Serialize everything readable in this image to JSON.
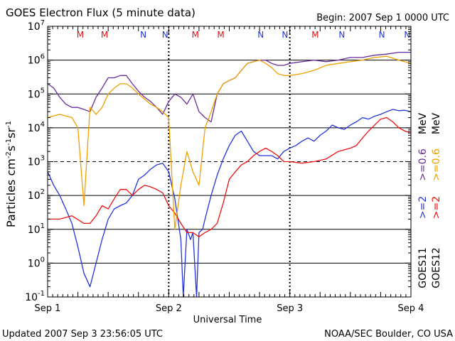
{
  "header": {
    "title": "GOES Electron Flux (5 minute data)",
    "begin": "Begin: 2007 Sep 1 0000 UTC"
  },
  "footer": {
    "updated": "Updated 2007 Sep  3 23:56:05 UTC",
    "credit": "NOAA/SEC Boulder, CO USA"
  },
  "colors": {
    "goes11_2mev": "#2233dd",
    "goes11_06mev": "#6a2c9a",
    "goes12_2mev": "#ee1111",
    "goes12_06mev": "#f0a000",
    "marker_m": "#dd1111",
    "marker_n": "#2233dd"
  },
  "chart_data": {
    "type": "line",
    "title": "GOES Electron Flux (5 minute data)",
    "xlabel": "Universal Time",
    "ylabel": "Particles cm^-2 s^-1 sr^-1",
    "y_scale": "log",
    "ylim": [
      0.1,
      10000000
    ],
    "x_tick_labels": [
      "Sep 1",
      "Sep 2",
      "Sep 3",
      "Sep 4"
    ],
    "y_tick_labels": [
      "10^-1",
      "10^0",
      "10^1",
      "10^2",
      "10^3",
      "10^4",
      "10^5",
      "10^6",
      "10^7"
    ],
    "x_units": "days since 2007 Sep 1 0000 UTC",
    "xlim": [
      0,
      3
    ],
    "markers": [
      {
        "label": "M",
        "x": 0.27
      },
      {
        "label": "M",
        "x": 0.47
      },
      {
        "label": "N",
        "x": 0.79
      },
      {
        "label": "N",
        "x": 0.97
      },
      {
        "label": "M",
        "x": 1.22
      },
      {
        "label": "M",
        "x": 1.43
      },
      {
        "label": "N",
        "x": 1.76
      },
      {
        "label": "N",
        "x": 1.96
      },
      {
        "label": "M",
        "x": 2.21
      },
      {
        "label": "N",
        "x": 2.43
      },
      {
        "label": "N",
        "x": 2.76
      },
      {
        "label": "N",
        "x": 2.97
      }
    ],
    "legend": {
      "goes11_label": "GOES11",
      "goes12_label": "GOES12",
      "goes11_2mev": ">=2",
      "goes11_06mev": ">=0.6",
      "goes12_2mev": ">=2",
      "goes12_06mev": ">=0.6",
      "unit": "MeV"
    },
    "series": [
      {
        "name": "GOES11 >=2 MeV",
        "color": "#2233dd",
        "x": [
          0,
          0.05,
          0.1,
          0.15,
          0.2,
          0.25,
          0.3,
          0.35,
          0.4,
          0.45,
          0.5,
          0.55,
          0.6,
          0.65,
          0.7,
          0.75,
          0.8,
          0.85,
          0.9,
          0.95,
          1.0,
          1.05,
          1.1,
          1.12,
          1.15,
          1.18,
          1.2,
          1.23,
          1.25,
          1.28,
          1.3,
          1.35,
          1.4,
          1.45,
          1.5,
          1.55,
          1.6,
          1.65,
          1.7,
          1.75,
          1.8,
          1.85,
          1.9,
          1.95,
          2.0,
          2.05,
          2.1,
          2.15,
          2.2,
          2.25,
          2.3,
          2.35,
          2.4,
          2.45,
          2.5,
          2.55,
          2.6,
          2.65,
          2.7,
          2.75,
          2.8,
          2.85,
          2.9,
          2.95,
          3.0
        ],
        "values": [
          500,
          200,
          100,
          40,
          15,
          3,
          0.5,
          0.2,
          1,
          5,
          20,
          40,
          50,
          60,
          100,
          300,
          400,
          600,
          800,
          900,
          500,
          80,
          5,
          0.1,
          10,
          5,
          8,
          0.1,
          8,
          10,
          20,
          100,
          400,
          1200,
          3000,
          6000,
          8000,
          4000,
          2000,
          1500,
          1500,
          1500,
          1200,
          2000,
          2500,
          3000,
          4000,
          5000,
          4000,
          6000,
          8000,
          12000,
          10000,
          9000,
          12000,
          15000,
          20000,
          18000,
          22000,
          25000,
          30000,
          35000,
          32000,
          33000,
          30000
        ]
      },
      {
        "name": "GOES11 >=0.6 MeV",
        "color": "#6a2c9a",
        "x": [
          0,
          0.05,
          0.1,
          0.15,
          0.2,
          0.25,
          0.3,
          0.35,
          0.4,
          0.45,
          0.5,
          0.55,
          0.6,
          0.65,
          0.7,
          0.75,
          0.8,
          0.85,
          0.9,
          0.95,
          1.0,
          1.05,
          1.1,
          1.15,
          1.2,
          1.25,
          1.3,
          1.35,
          1.4,
          1.45,
          1.5,
          1.55,
          1.6,
          1.65,
          1.7,
          1.75,
          1.8,
          1.85,
          1.9,
          1.95,
          2.0,
          2.1,
          2.2,
          2.3,
          2.4,
          2.5,
          2.6,
          2.7,
          2.8,
          2.9,
          3.0
        ],
        "values": [
          200000,
          150000,
          80000,
          50000,
          40000,
          40000,
          35000,
          30000,
          80000,
          150000,
          300000,
          300000,
          350000,
          350000,
          200000,
          120000,
          80000,
          60000,
          40000,
          25000,
          60000,
          100000,
          80000,
          50000,
          100000,
          30000,
          20000,
          15000,
          100000,
          200000,
          250000,
          300000,
          500000,
          800000,
          900000,
          1000000,
          1000000,
          800000,
          700000,
          700000,
          800000,
          900000,
          1000000,
          900000,
          1000000,
          1200000,
          1200000,
          1400000,
          1500000,
          1700000,
          1700000
        ]
      },
      {
        "name": "GOES12 >=2 MeV",
        "color": "#ee1111",
        "x": [
          0,
          0.1,
          0.2,
          0.3,
          0.35,
          0.4,
          0.45,
          0.5,
          0.55,
          0.6,
          0.65,
          0.7,
          0.75,
          0.8,
          0.85,
          0.9,
          0.95,
          1.0,
          1.05,
          1.1,
          1.15,
          1.2,
          1.25,
          1.3,
          1.35,
          1.4,
          1.45,
          1.5,
          1.55,
          1.6,
          1.65,
          1.7,
          1.75,
          1.8,
          1.85,
          1.9,
          1.95,
          2.0,
          2.1,
          2.2,
          2.3,
          2.4,
          2.5,
          2.55,
          2.6,
          2.65,
          2.7,
          2.75,
          2.8,
          2.85,
          2.9,
          2.95,
          3.0
        ],
        "values": [
          20,
          20,
          25,
          15,
          15,
          25,
          50,
          40,
          80,
          150,
          150,
          100,
          150,
          200,
          180,
          150,
          120,
          50,
          30,
          15,
          8,
          8,
          6,
          8,
          10,
          15,
          60,
          300,
          500,
          800,
          1000,
          1500,
          2000,
          2500,
          2000,
          1500,
          1000,
          1000,
          900,
          1000,
          1200,
          2000,
          2500,
          3000,
          5000,
          8000,
          12000,
          18000,
          20000,
          15000,
          10000,
          8000,
          7000
        ]
      },
      {
        "name": "GOES12 >=0.6 MeV",
        "color": "#f0a000",
        "x": [
          0,
          0.1,
          0.2,
          0.25,
          0.3,
          0.35,
          0.4,
          0.45,
          0.5,
          0.55,
          0.6,
          0.65,
          0.7,
          0.75,
          0.8,
          0.85,
          0.9,
          0.95,
          1.0,
          1.05,
          1.1,
          1.15,
          1.2,
          1.25,
          1.3,
          1.35,
          1.4,
          1.45,
          1.5,
          1.55,
          1.6,
          1.65,
          1.7,
          1.75,
          1.8,
          1.85,
          1.9,
          1.95,
          2.0,
          2.1,
          2.2,
          2.3,
          2.4,
          2.5,
          2.6,
          2.7,
          2.8,
          2.9,
          3.0
        ],
        "values": [
          20000,
          25000,
          20000,
          10000,
          50,
          40000,
          25000,
          40000,
          100000,
          150000,
          200000,
          200000,
          150000,
          100000,
          70000,
          50000,
          40000,
          30000,
          20000,
          10,
          200,
          2000,
          500,
          200,
          10000,
          30000,
          100000,
          200000,
          250000,
          300000,
          500000,
          800000,
          900000,
          1000000,
          800000,
          600000,
          400000,
          350000,
          350000,
          400000,
          500000,
          700000,
          800000,
          900000,
          1000000,
          1200000,
          1300000,
          1000000,
          800000
        ]
      }
    ]
  }
}
